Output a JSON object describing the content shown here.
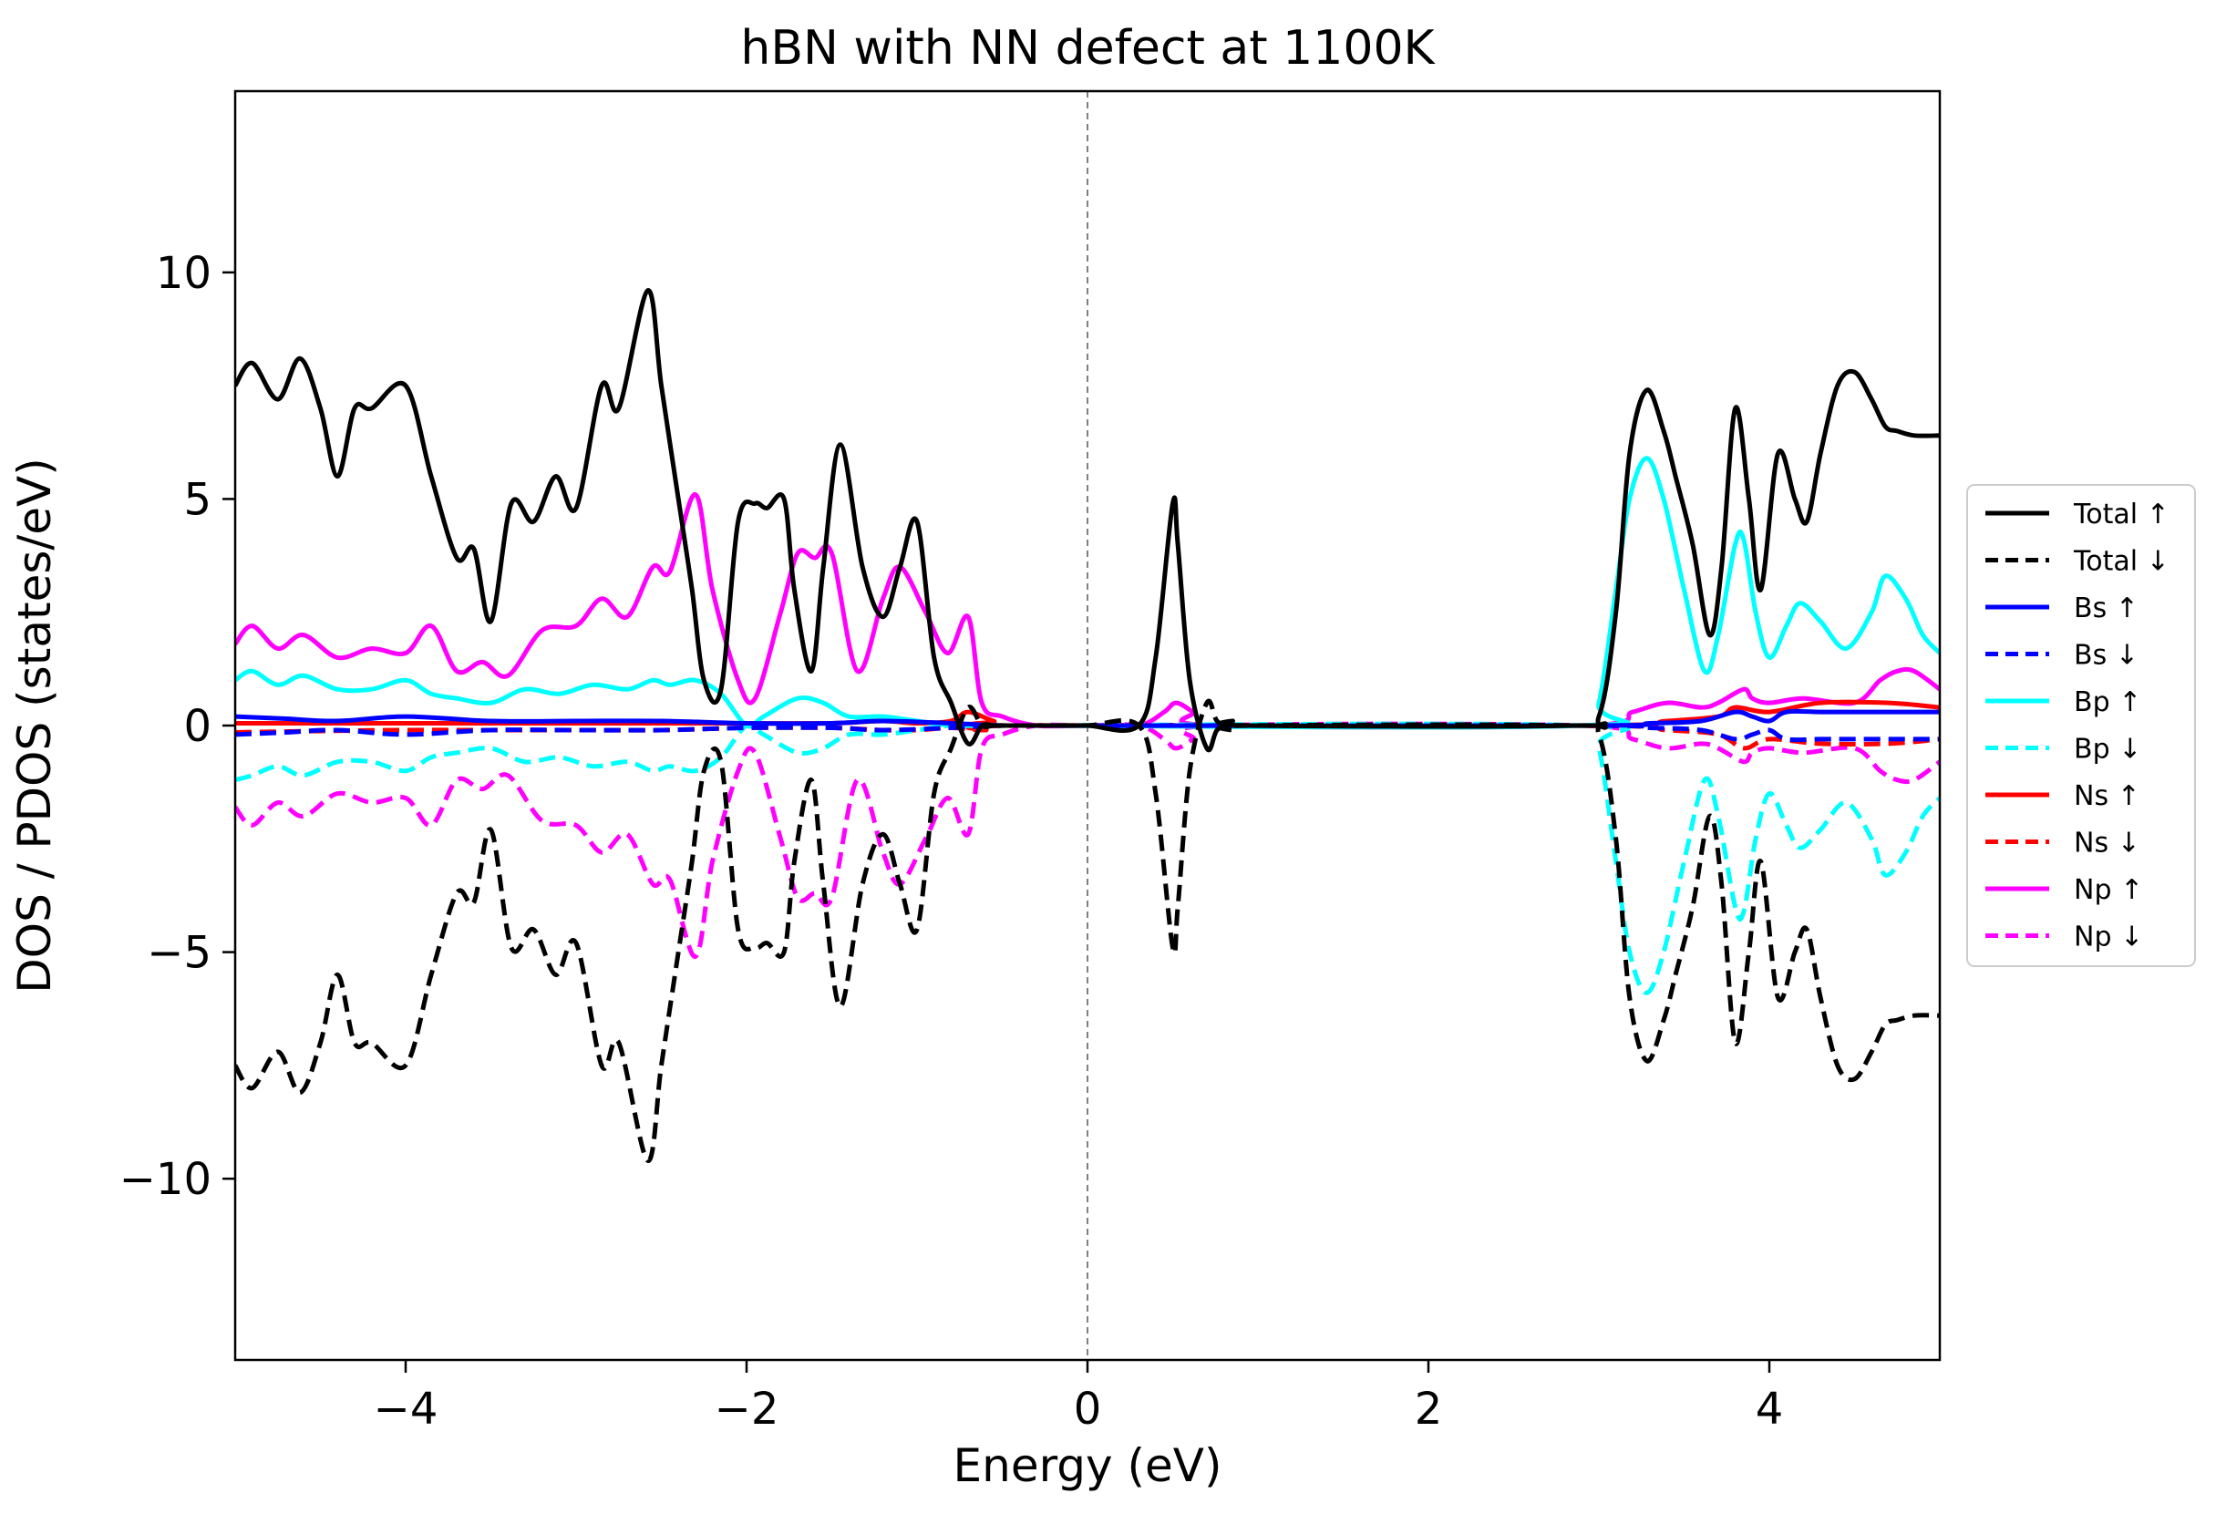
{
  "chart_data": {
    "type": "line",
    "title": "hBN with NN defect at 1100K",
    "xlabel": "Energy (eV)",
    "ylabel": "DOS / PDOS (states/eV)",
    "xlim": [
      -5,
      5
    ],
    "ylim": [
      -14,
      14
    ],
    "xticks": [
      -4,
      -2,
      0,
      2,
      4
    ],
    "xtick_labels": [
      "−4",
      "−2",
      "0",
      "2",
      "4"
    ],
    "yticks": [
      -10,
      -5,
      0,
      5,
      10
    ],
    "ytick_labels": [
      "−10",
      "−5",
      "0",
      "5",
      "10"
    ],
    "fermi_level": 0,
    "grid": false,
    "legend_position": "outside-right",
    "series": [
      {
        "name": "Total ↑",
        "color": "#000000",
        "dash": "solid",
        "x": [
          -5.0,
          -4.9,
          -4.75,
          -4.62,
          -4.5,
          -4.4,
          -4.3,
          -4.2,
          -4.0,
          -3.85,
          -3.7,
          -3.6,
          -3.5,
          -3.38,
          -3.25,
          -3.12,
          -3.0,
          -2.85,
          -2.75,
          -2.58,
          -2.5,
          -2.4,
          -2.32,
          -2.25,
          -2.15,
          -2.05,
          -1.95,
          -1.88,
          -1.78,
          -1.72,
          -1.62,
          -1.55,
          -1.45,
          -1.32,
          -1.2,
          -1.1,
          -1.0,
          -0.9,
          -0.8,
          -0.7,
          -0.62,
          -0.55,
          -0.48,
          -0.4,
          -0.3,
          -0.2,
          0.0,
          0.3,
          0.4,
          0.5,
          0.53,
          0.6,
          0.7,
          0.76,
          0.85,
          0.95,
          2.85,
          3.0,
          3.1,
          3.18,
          3.28,
          3.38,
          3.45,
          3.55,
          3.65,
          3.72,
          3.8,
          3.88,
          3.95,
          4.05,
          4.15,
          4.22,
          4.3,
          4.4,
          4.5,
          4.6,
          4.68,
          4.75,
          4.85,
          5.0
        ],
        "y": [
          7.5,
          8.0,
          7.2,
          8.1,
          7.0,
          5.5,
          7.0,
          7.0,
          7.5,
          5.5,
          3.7,
          3.9,
          2.3,
          4.9,
          4.5,
          5.5,
          4.8,
          7.5,
          7.0,
          9.6,
          7.5,
          5.0,
          3.0,
          1.0,
          0.8,
          4.5,
          4.9,
          4.8,
          5.0,
          3.0,
          1.2,
          3.5,
          6.2,
          3.5,
          2.4,
          3.5,
          4.5,
          1.5,
          0.5,
          -0.4,
          0.0,
          0.0,
          0.0,
          0.0,
          0.0,
          0.0,
          0.0,
          0.0,
          1.5,
          4.9,
          4.0,
          1.0,
          -0.5,
          -0.1,
          0.1,
          0.0,
          0.0,
          0.2,
          2.5,
          6.0,
          7.4,
          6.5,
          5.5,
          4.0,
          2.0,
          3.5,
          7.0,
          5.0,
          3.0,
          6.0,
          5.0,
          4.5,
          6.0,
          7.5,
          7.8,
          7.2,
          6.6,
          6.5,
          6.4,
          6.4
        ]
      },
      {
        "name": "Total ↓",
        "color": "#000000",
        "dash": "dashed",
        "x": [
          -5.0,
          -4.9,
          -4.75,
          -4.62,
          -4.5,
          -4.4,
          -4.3,
          -4.2,
          -4.0,
          -3.85,
          -3.7,
          -3.6,
          -3.5,
          -3.38,
          -3.25,
          -3.12,
          -3.0,
          -2.85,
          -2.75,
          -2.58,
          -2.5,
          -2.4,
          -2.32,
          -2.25,
          -2.15,
          -2.05,
          -1.95,
          -1.88,
          -1.78,
          -1.72,
          -1.62,
          -1.55,
          -1.45,
          -1.32,
          -1.2,
          -1.1,
          -1.0,
          -0.9,
          -0.8,
          -0.7,
          -0.62,
          -0.55,
          -0.48,
          -0.4,
          -0.3,
          -0.2,
          0.0,
          0.3,
          0.4,
          0.5,
          0.53,
          0.6,
          0.7,
          0.76,
          0.85,
          0.95,
          2.85,
          3.0,
          3.1,
          3.18,
          3.28,
          3.38,
          3.45,
          3.55,
          3.65,
          3.72,
          3.8,
          3.88,
          3.95,
          4.05,
          4.15,
          4.22,
          4.3,
          4.4,
          4.5,
          4.6,
          4.68,
          4.75,
          4.85,
          5.0
        ],
        "y": [
          -7.5,
          -8.0,
          -7.2,
          -8.1,
          -7.0,
          -5.5,
          -7.0,
          -7.0,
          -7.5,
          -5.5,
          -3.7,
          -3.9,
          -2.3,
          -4.9,
          -4.5,
          -5.5,
          -4.8,
          -7.5,
          -7.0,
          -9.6,
          -7.5,
          -5.0,
          -3.0,
          -1.0,
          -0.8,
          -4.5,
          -4.9,
          -4.8,
          -5.0,
          -3.0,
          -1.2,
          -3.5,
          -6.2,
          -3.5,
          -2.4,
          -3.5,
          -4.5,
          -1.5,
          -0.5,
          0.4,
          0.0,
          0.0,
          0.0,
          0.0,
          0.0,
          0.0,
          0.0,
          0.0,
          -1.5,
          -4.9,
          -4.0,
          -1.0,
          0.5,
          0.1,
          -0.1,
          0.0,
          0.0,
          -0.2,
          -2.5,
          -6.0,
          -7.4,
          -6.5,
          -5.5,
          -4.0,
          -2.0,
          -3.5,
          -7.0,
          -5.0,
          -3.0,
          -6.0,
          -5.0,
          -4.5,
          -6.0,
          -7.5,
          -7.8,
          -7.2,
          -6.6,
          -6.5,
          -6.4,
          -6.4
        ]
      },
      {
        "name": "Bs ↑",
        "color": "#0000ff",
        "dash": "solid",
        "x": [
          -5.0,
          -4.7,
          -4.4,
          -4.0,
          -3.5,
          -3.0,
          -2.5,
          -2.0,
          -1.5,
          -1.2,
          -0.8,
          -0.5,
          -0.3,
          2.9,
          3.3,
          3.6,
          3.8,
          3.9,
          4.0,
          4.1,
          4.3,
          4.6,
          5.0
        ],
        "y": [
          0.2,
          0.15,
          0.1,
          0.2,
          0.1,
          0.1,
          0.1,
          0.05,
          0.05,
          0.1,
          0.05,
          0.0,
          0.0,
          0.0,
          0.05,
          0.1,
          0.3,
          0.2,
          0.1,
          0.3,
          0.3,
          0.3,
          0.3
        ]
      },
      {
        "name": "Bs ↓",
        "color": "#0000ff",
        "dash": "dashed",
        "x": [
          -5.0,
          -4.7,
          -4.4,
          -4.0,
          -3.5,
          -3.0,
          -2.5,
          -2.0,
          -1.5,
          -1.2,
          -0.8,
          -0.5,
          -0.3,
          2.9,
          3.3,
          3.6,
          3.8,
          3.9,
          4.0,
          4.1,
          4.3,
          4.6,
          5.0
        ],
        "y": [
          -0.2,
          -0.15,
          -0.1,
          -0.2,
          -0.1,
          -0.1,
          -0.1,
          -0.05,
          -0.05,
          -0.1,
          -0.05,
          0.0,
          0.0,
          0.0,
          -0.05,
          -0.1,
          -0.3,
          -0.2,
          -0.1,
          -0.3,
          -0.3,
          -0.3,
          -0.3
        ]
      },
      {
        "name": "Bp ↑",
        "color": "#00ffff",
        "dash": "solid",
        "x": [
          -5.0,
          -4.9,
          -4.75,
          -4.6,
          -4.4,
          -4.2,
          -4.0,
          -3.85,
          -3.7,
          -3.5,
          -3.3,
          -3.1,
          -2.9,
          -2.7,
          -2.55,
          -2.45,
          -2.3,
          -2.15,
          -2.0,
          -1.9,
          -1.7,
          -1.55,
          -1.4,
          -1.2,
          -1.0,
          -0.8,
          -0.6,
          -0.4,
          2.9,
          3.0,
          3.1,
          3.18,
          3.28,
          3.38,
          3.5,
          3.62,
          3.7,
          3.8,
          3.85,
          3.92,
          4.0,
          4.1,
          4.18,
          4.3,
          4.45,
          4.6,
          4.68,
          4.8,
          4.9,
          5.0
        ],
        "y": [
          1.0,
          1.2,
          0.9,
          1.1,
          0.8,
          0.8,
          1.0,
          0.7,
          0.6,
          0.5,
          0.8,
          0.7,
          0.9,
          0.8,
          1.0,
          0.9,
          1.0,
          0.7,
          0.0,
          0.2,
          0.6,
          0.5,
          0.2,
          0.2,
          0.1,
          0.0,
          0.0,
          0.0,
          0.0,
          0.5,
          3.0,
          5.0,
          5.9,
          5.0,
          3.0,
          1.2,
          2.0,
          4.0,
          4.1,
          2.5,
          1.5,
          2.2,
          2.7,
          2.3,
          1.7,
          2.5,
          3.3,
          2.8,
          2.0,
          1.6
        ]
      },
      {
        "name": "Bp ↓",
        "color": "#00ffff",
        "dash": "dashed",
        "x": [
          -5.0,
          -4.9,
          -4.75,
          -4.6,
          -4.4,
          -4.2,
          -4.0,
          -3.85,
          -3.7,
          -3.5,
          -3.3,
          -3.1,
          -2.9,
          -2.7,
          -2.55,
          -2.45,
          -2.3,
          -2.15,
          -2.0,
          -1.9,
          -1.7,
          -1.55,
          -1.4,
          -1.2,
          -1.0,
          -0.8,
          -0.6,
          -0.4,
          2.9,
          3.0,
          3.1,
          3.18,
          3.28,
          3.38,
          3.5,
          3.62,
          3.7,
          3.8,
          3.85,
          3.92,
          4.0,
          4.1,
          4.18,
          4.3,
          4.45,
          4.6,
          4.68,
          4.8,
          4.9,
          5.0
        ],
        "y": [
          -1.2,
          -1.1,
          -0.9,
          -1.1,
          -0.8,
          -0.8,
          -1.0,
          -0.7,
          -0.6,
          -0.5,
          -0.8,
          -0.7,
          -0.9,
          -0.8,
          -1.0,
          -0.9,
          -1.0,
          -0.7,
          0.0,
          -0.2,
          -0.6,
          -0.5,
          -0.2,
          -0.2,
          -0.1,
          0.0,
          0.0,
          0.0,
          0.0,
          -0.5,
          -3.0,
          -5.0,
          -5.9,
          -5.0,
          -3.0,
          -1.2,
          -2.0,
          -4.0,
          -4.1,
          -2.5,
          -1.5,
          -2.2,
          -2.7,
          -2.3,
          -1.7,
          -2.5,
          -3.3,
          -2.8,
          -2.0,
          -1.6
        ]
      },
      {
        "name": "Ns ↑",
        "color": "#ff0000",
        "dash": "solid",
        "x": [
          -5.0,
          -4.5,
          -4.0,
          -3.5,
          -3.0,
          -2.5,
          -2.0,
          -1.5,
          -1.2,
          -1.0,
          -0.8,
          -0.7,
          -0.55,
          -0.4,
          2.9,
          3.4,
          3.7,
          3.8,
          4.0,
          4.3,
          4.7,
          5.0
        ],
        "y": [
          0.05,
          0.05,
          0.05,
          0.05,
          0.05,
          0.05,
          0.05,
          0.05,
          0.1,
          0.05,
          0.1,
          0.3,
          0.1,
          0.0,
          0.0,
          0.1,
          0.2,
          0.4,
          0.3,
          0.5,
          0.5,
          0.4
        ]
      },
      {
        "name": "Ns ↓",
        "color": "#ff0000",
        "dash": "dashed",
        "x": [
          -5.0,
          -4.5,
          -4.0,
          -3.5,
          -3.0,
          -2.5,
          -2.0,
          -1.5,
          -1.2,
          -1.0,
          -0.8,
          -0.6,
          -0.4,
          2.9,
          3.4,
          3.7,
          3.85,
          4.0,
          4.3,
          4.7,
          5.0
        ],
        "y": [
          -0.15,
          -0.12,
          -0.1,
          -0.1,
          -0.1,
          -0.1,
          -0.05,
          -0.05,
          -0.1,
          -0.1,
          -0.05,
          -0.1,
          0.0,
          0.0,
          -0.1,
          -0.2,
          -0.5,
          -0.3,
          -0.4,
          -0.4,
          -0.3
        ]
      },
      {
        "name": "Np ↑",
        "color": "#ff00ff",
        "dash": "solid",
        "x": [
          -5.0,
          -4.9,
          -4.75,
          -4.6,
          -4.4,
          -4.2,
          -4.0,
          -3.85,
          -3.7,
          -3.55,
          -3.4,
          -3.2,
          -3.0,
          -2.85,
          -2.7,
          -2.55,
          -2.45,
          -2.3,
          -2.2,
          -2.05,
          -1.95,
          -1.8,
          -1.7,
          -1.6,
          -1.5,
          -1.35,
          -1.2,
          -1.1,
          -0.95,
          -0.82,
          -0.7,
          -0.62,
          -0.5,
          -0.3,
          0.0,
          0.3,
          0.45,
          0.52,
          0.62,
          0.75,
          2.9,
          3.2,
          3.4,
          3.6,
          3.7,
          3.85,
          3.9,
          4.0,
          4.2,
          4.5,
          4.65,
          4.75,
          4.85,
          5.0
        ],
        "y": [
          1.8,
          2.2,
          1.7,
          2.0,
          1.5,
          1.7,
          1.6,
          2.2,
          1.2,
          1.4,
          1.1,
          2.1,
          2.2,
          2.8,
          2.4,
          3.5,
          3.4,
          5.1,
          3.0,
          1.0,
          0.6,
          2.5,
          3.8,
          3.7,
          3.8,
          1.2,
          2.8,
          3.5,
          2.5,
          1.6,
          2.4,
          0.5,
          0.2,
          0.0,
          0.0,
          0.0,
          0.3,
          0.5,
          0.3,
          0.0,
          0.0,
          0.3,
          0.5,
          0.4,
          0.5,
          0.8,
          0.6,
          0.5,
          0.6,
          0.5,
          1.0,
          1.2,
          1.2,
          0.8
        ]
      },
      {
        "name": "Np ↓",
        "color": "#ff00ff",
        "dash": "dashed",
        "x": [
          -5.0,
          -4.9,
          -4.75,
          -4.6,
          -4.4,
          -4.2,
          -4.0,
          -3.85,
          -3.7,
          -3.55,
          -3.4,
          -3.2,
          -3.0,
          -2.85,
          -2.7,
          -2.55,
          -2.45,
          -2.3,
          -2.2,
          -2.05,
          -1.95,
          -1.8,
          -1.7,
          -1.6,
          -1.5,
          -1.35,
          -1.2,
          -1.1,
          -0.95,
          -0.82,
          -0.7,
          -0.62,
          -0.5,
          -0.3,
          0.0,
          0.3,
          0.45,
          0.52,
          0.62,
          0.75,
          2.9,
          3.2,
          3.4,
          3.6,
          3.7,
          3.85,
          3.9,
          4.0,
          4.2,
          4.5,
          4.65,
          4.75,
          4.85,
          5.0
        ],
        "y": [
          -1.8,
          -2.2,
          -1.7,
          -2.0,
          -1.5,
          -1.7,
          -1.6,
          -2.2,
          -1.2,
          -1.4,
          -1.1,
          -2.1,
          -2.2,
          -2.8,
          -2.4,
          -3.5,
          -3.4,
          -5.1,
          -3.0,
          -1.0,
          -0.6,
          -2.5,
          -3.8,
          -3.7,
          -3.8,
          -1.2,
          -2.8,
          -3.5,
          -2.5,
          -1.6,
          -2.4,
          -0.5,
          -0.2,
          0.0,
          0.0,
          0.0,
          -0.3,
          -0.5,
          -0.3,
          0.0,
          0.0,
          -0.3,
          -0.5,
          -0.4,
          -0.5,
          -0.8,
          -0.6,
          -0.5,
          -0.6,
          -0.5,
          -1.0,
          -1.2,
          -1.2,
          -0.8
        ]
      }
    ]
  }
}
